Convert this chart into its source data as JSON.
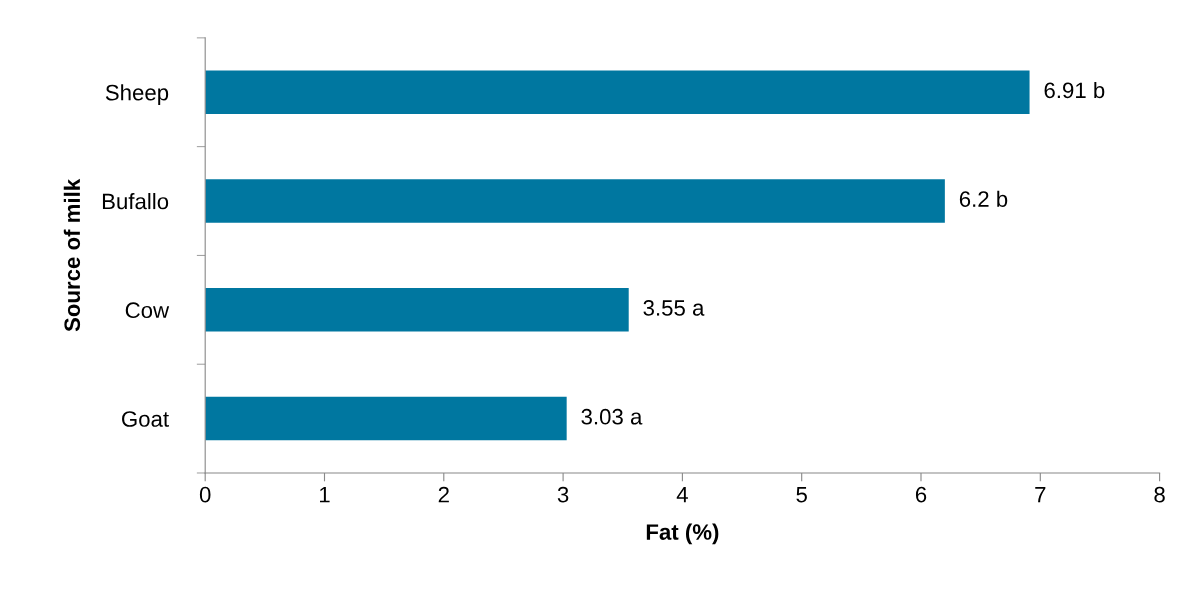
{
  "chart_data": {
    "type": "bar",
    "orientation": "horizontal",
    "xlabel": "Fat (%)",
    "ylabel": "Source of milk",
    "categories": [
      "Sheep",
      "Bufallo",
      "Cow",
      "Goat"
    ],
    "values": [
      6.91,
      6.2,
      3.55,
      3.03
    ],
    "value_labels": [
      "6.91 b",
      "6.2 b",
      "3.55 a",
      "3.03 a"
    ],
    "color": "#0077a0",
    "xlim": [
      0,
      8
    ],
    "xticks": [
      0,
      1,
      2,
      3,
      4,
      5,
      6,
      7,
      8
    ],
    "grid": false
  }
}
